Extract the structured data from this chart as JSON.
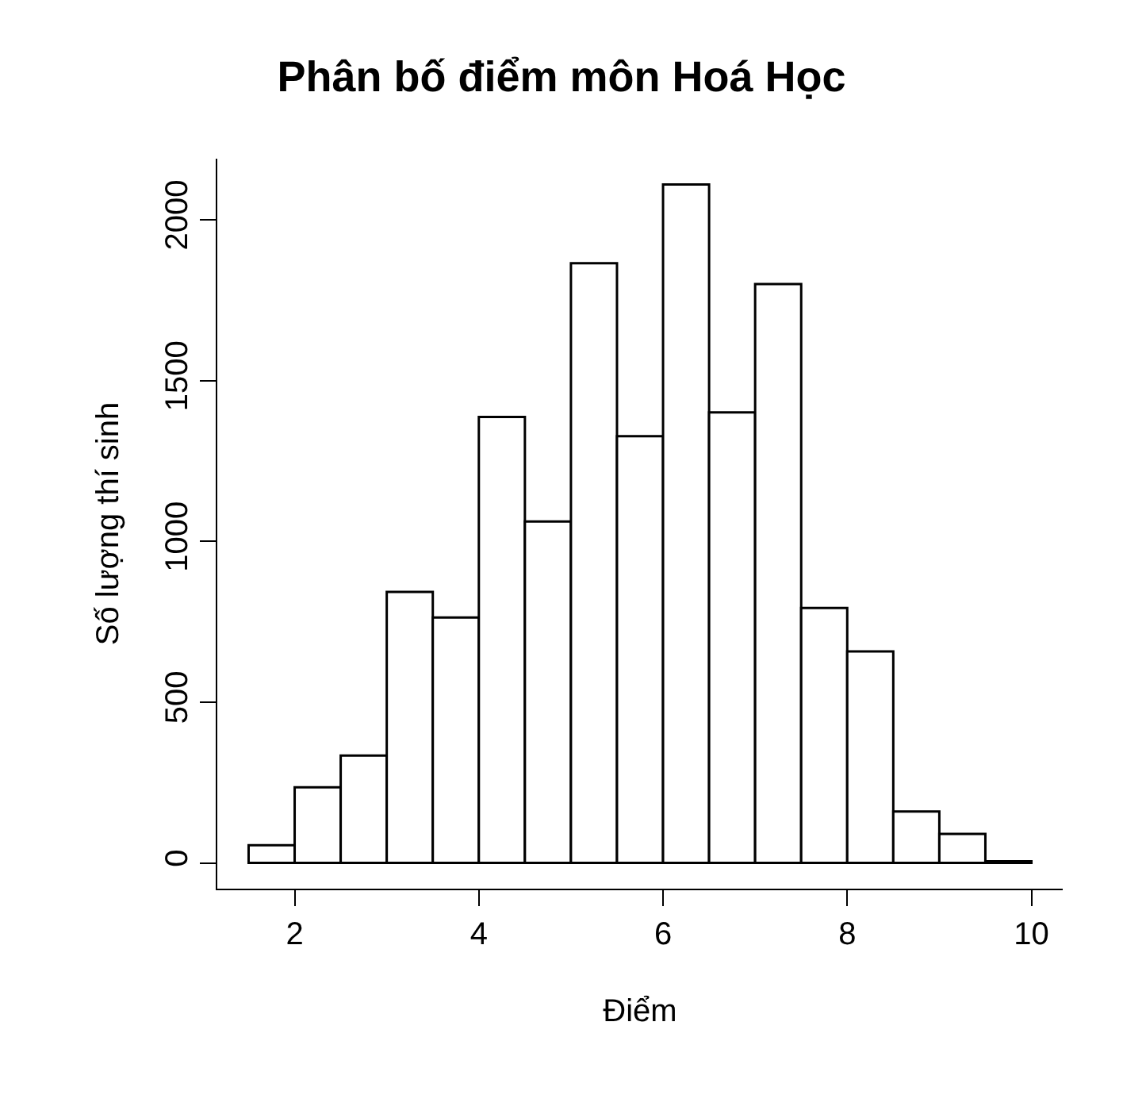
{
  "chart_data": {
    "type": "histogram",
    "title": "Phân bố điểm môn Hoá Học",
    "xlabel": "Điểm",
    "ylabel": "Số lượng thí sinh",
    "bins": [
      1.5,
      2,
      2.5,
      3,
      3.5,
      4,
      4.5,
      5,
      5.5,
      6,
      6.5,
      7,
      7.5,
      8,
      8.5,
      9,
      9.5,
      10
    ],
    "values": [
      55,
      235,
      334,
      843,
      763,
      1387,
      1062,
      1865,
      1327,
      2110,
      1401,
      1800,
      793,
      658,
      160,
      90,
      5
    ],
    "color": "#ffffff",
    "xlim": [
      1.16,
      10.34
    ],
    "xticks": [
      2,
      4,
      6,
      8,
      10
    ],
    "ylim": [
      -80,
      2190
    ],
    "yticks": [
      0,
      500,
      1000,
      1500,
      2000
    ],
    "grid": false
  }
}
